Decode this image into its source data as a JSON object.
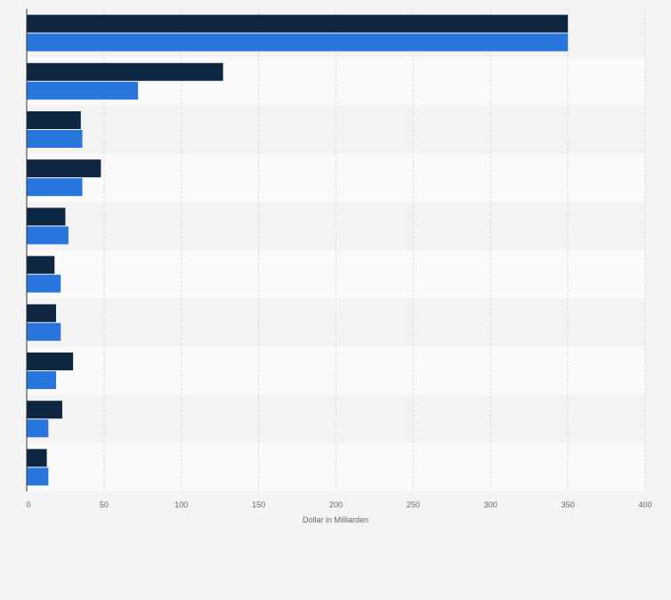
{
  "chart_data": {
    "type": "bar",
    "orientation": "horizontal",
    "title": "",
    "xlabel": "Dollar in Milliarden",
    "ylabel": "",
    "xlim": [
      0,
      400
    ],
    "x_ticks": [
      "0",
      "50",
      "100",
      "150",
      "200",
      "250",
      "300",
      "350",
      "400"
    ],
    "grid": true,
    "legend": "none",
    "categories": [
      "",
      "",
      "",
      "",
      "",
      "",
      "",
      "",
      "",
      ""
    ],
    "series": [
      {
        "name": "",
        "color": "#0f2642",
        "values": [
          350,
          127,
          35,
          48,
          25,
          18,
          19,
          30,
          23,
          13
        ]
      },
      {
        "name": "",
        "color": "#2876dd",
        "values": [
          350,
          72,
          36,
          36,
          27,
          22,
          22,
          19,
          14,
          14
        ]
      }
    ]
  }
}
